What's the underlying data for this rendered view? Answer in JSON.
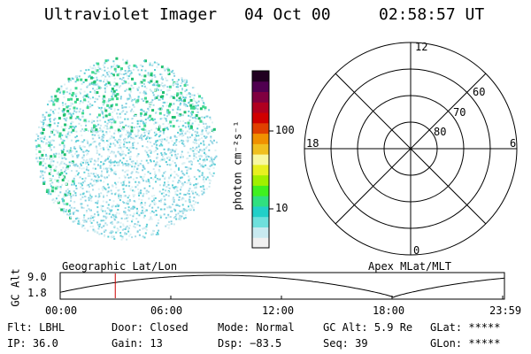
{
  "header": {
    "instrument": "Ultraviolet Imager",
    "date": "04 Oct 00",
    "time": "02:58:57 UT"
  },
  "colorbar": {
    "unit_label": "photon cm⁻²s⁻¹",
    "ticks": [
      "100",
      "10"
    ],
    "colors": [
      "#f0f0f0",
      "#c8eaf0",
      "#6ee0dc",
      "#22d0c8",
      "#30e080",
      "#40f020",
      "#a0f000",
      "#e8f020",
      "#f8f8a0",
      "#f0c020",
      "#f09000",
      "#e04000",
      "#d00000",
      "#b00020",
      "#800040",
      "#500050",
      "#200020"
    ]
  },
  "polar_plot": {
    "clock_labels": [
      "12",
      "18",
      "6",
      "0"
    ],
    "lat_labels": [
      "60",
      "70",
      "80"
    ]
  },
  "orbit_plot": {
    "left_label": "Geographic Lat/Lon",
    "right_label": "Apex MLat/MLT",
    "ylabel": "GC Alt",
    "yticks": [
      "9.0",
      "1.8"
    ],
    "xticks": [
      "00:00",
      "06:00",
      "12:00",
      "18:00",
      "23:59"
    ],
    "current_time_fraction": 0.124,
    "marker_color": "#cc0000"
  },
  "footer": {
    "row1": [
      {
        "label": "Flt:",
        "value": "LBHL"
      },
      {
        "label": "Door:",
        "value": "Closed"
      },
      {
        "label": "Mode:",
        "value": "Normal"
      },
      {
        "label": "GC Alt:",
        "value": "5.9 Re"
      },
      {
        "label": "GLat:",
        "value": "*****"
      }
    ],
    "row2": [
      {
        "label": "IP:",
        "value": "36.0"
      },
      {
        "label": "Gain:",
        "value": "13"
      },
      {
        "label": "Dsp:",
        "value": "−83.5"
      },
      {
        "label": "Seq:",
        "value": "39"
      },
      {
        "label": "GLon:",
        "value": "*****"
      }
    ]
  }
}
